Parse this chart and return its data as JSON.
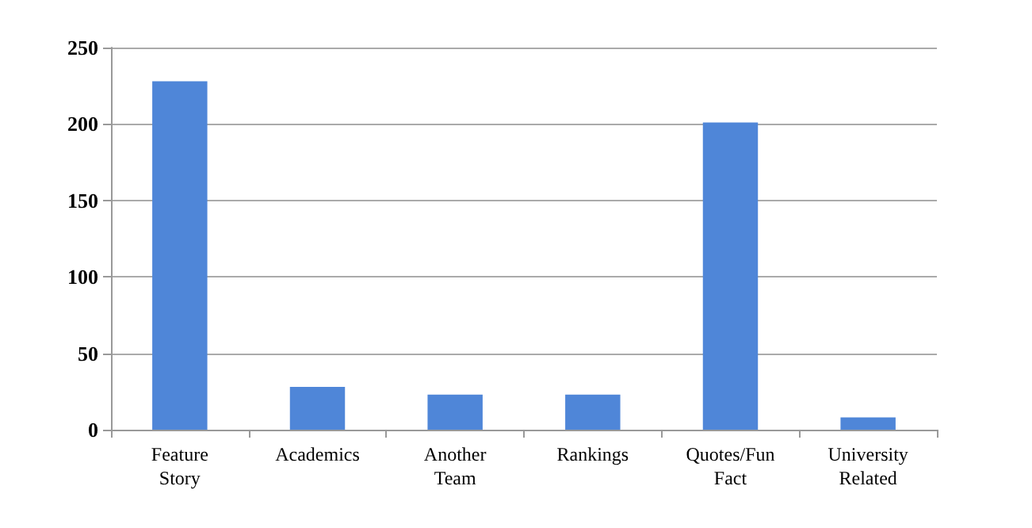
{
  "chart_data": {
    "type": "bar",
    "categories": [
      "Feature\nStory",
      "Academics",
      "Another\nTeam",
      "Rankings",
      "Quotes/Fun\nFact",
      "University\nRelated"
    ],
    "values": [
      228,
      28,
      23,
      23,
      201,
      8
    ],
    "color": "#4f86d8",
    "ylim": [
      0,
      250
    ],
    "yticks": [
      0,
      50,
      100,
      150,
      200,
      250
    ],
    "grid": "y"
  }
}
